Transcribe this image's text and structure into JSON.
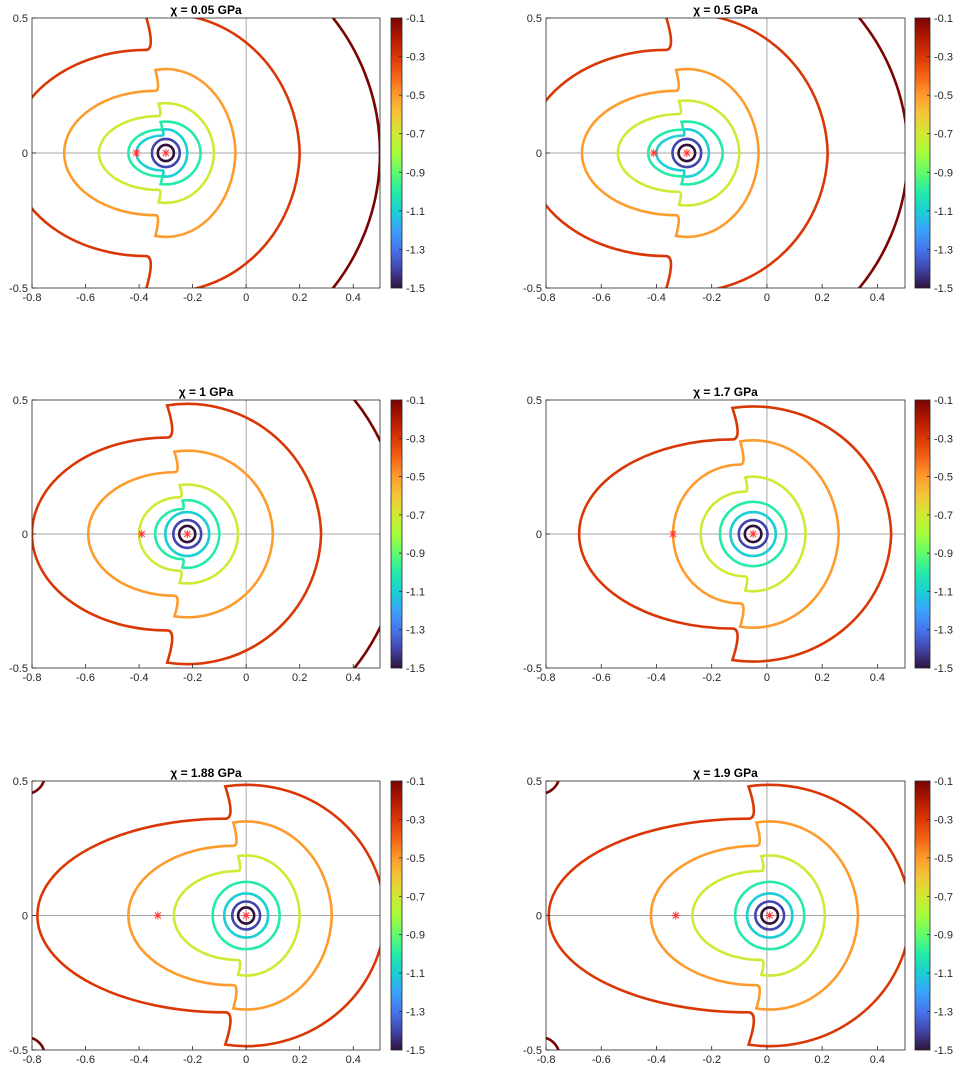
{
  "figure": {
    "x_ticks": [
      "-0.8",
      "-0.6",
      "-0.4",
      "-0.2",
      "0",
      "0.2",
      "0.4"
    ],
    "y_ticks": [
      "-0.5",
      "0",
      "0.5"
    ],
    "colorbar_ticks": [
      "-0.1",
      "-0.3",
      "-0.5",
      "-0.7",
      "-0.9",
      "-1.1",
      "-1.3",
      "-1.5"
    ],
    "colorbar_range": [
      -1.5,
      -0.1
    ],
    "colormap": [
      "#30123b",
      "#4145ab",
      "#4675ed",
      "#39a2fc",
      "#1bcfd4",
      "#24eca6",
      "#61fc6c",
      "#a4fc3b",
      "#d1e834",
      "#f3c63a",
      "#fe9b2d",
      "#f36315",
      "#d93806",
      "#b11901",
      "#7a0402"
    ],
    "axis_line_color": "#a6a6a6",
    "star_color": "#ff3030"
  },
  "chart_data": [
    {
      "type": "contour",
      "title": "χ = 0.05 GPa",
      "xlim": [
        -0.8,
        0.5
      ],
      "ylim": [
        -0.5,
        0.5
      ],
      "center_star": [
        -0.3,
        0
      ],
      "side_star": [
        -0.41,
        0
      ],
      "levels": [
        {
          "value": -1.5,
          "color": "#30123b",
          "shape": "circle",
          "center": [
            -0.3,
            0
          ],
          "radius": 0.03
        },
        {
          "value": -1.3,
          "color": "#4145ab",
          "shape": "circle",
          "center": [
            -0.3,
            0
          ],
          "radius": 0.052
        },
        {
          "value": -1.1,
          "color": "#1bcfd4",
          "shape": "blob",
          "xmin": -0.41,
          "xmax": -0.22,
          "ymax": 0.09
        },
        {
          "value": -0.9,
          "color": "#24eca6",
          "shape": "blob",
          "xmin": -0.44,
          "xmax": -0.17,
          "ymax": 0.12
        },
        {
          "value": -0.7,
          "color": "#d1e834",
          "shape": "blob",
          "xmin": -0.55,
          "xmax": -0.12,
          "ymax": 0.19
        },
        {
          "value": -0.5,
          "color": "#fe9b2d",
          "shape": "blob",
          "xmin": -0.68,
          "xmax": -0.04,
          "ymax": 0.32
        },
        {
          "value": -0.3,
          "color": "#d93806",
          "shape": "blob",
          "xmin": -0.88,
          "xmax": 0.2,
          "ymax": 0.53
        },
        {
          "value": -0.1,
          "color": "#7a0402",
          "shape": "arc",
          "center": [
            -0.3,
            0
          ],
          "radius": 0.8
        }
      ]
    },
    {
      "type": "contour",
      "title": "χ = 0.5 GPa",
      "xlim": [
        -0.8,
        0.5
      ],
      "ylim": [
        -0.5,
        0.5
      ],
      "center_star": [
        -0.29,
        0
      ],
      "side_star": [
        -0.41,
        0
      ],
      "levels": [
        {
          "value": -1.5,
          "color": "#30123b",
          "shape": "circle",
          "center": [
            -0.29,
            0
          ],
          "radius": 0.03
        },
        {
          "value": -1.3,
          "color": "#4145ab",
          "shape": "circle",
          "center": [
            -0.29,
            0
          ],
          "radius": 0.052
        },
        {
          "value": -1.1,
          "color": "#1bcfd4",
          "shape": "blob",
          "xmin": -0.4,
          "xmax": -0.21,
          "ymax": 0.09
        },
        {
          "value": -0.9,
          "color": "#24eca6",
          "shape": "blob",
          "xmin": -0.43,
          "xmax": -0.16,
          "ymax": 0.12
        },
        {
          "value": -0.7,
          "color": "#d1e834",
          "shape": "blob",
          "xmin": -0.54,
          "xmax": -0.1,
          "ymax": 0.2
        },
        {
          "value": -0.5,
          "color": "#fe9b2d",
          "shape": "blob",
          "xmin": -0.67,
          "xmax": -0.03,
          "ymax": 0.32
        },
        {
          "value": -0.3,
          "color": "#d93806",
          "shape": "blob",
          "xmin": -0.87,
          "xmax": 0.22,
          "ymax": 0.53
        },
        {
          "value": -0.1,
          "color": "#7a0402",
          "shape": "arc",
          "center": [
            -0.29,
            0
          ],
          "radius": 0.8
        }
      ]
    },
    {
      "type": "contour",
      "title": "χ = 1 GPa",
      "xlim": [
        -0.8,
        0.5
      ],
      "ylim": [
        -0.5,
        0.5
      ],
      "center_star": [
        -0.22,
        0
      ],
      "side_star": [
        -0.39,
        0
      ],
      "levels": [
        {
          "value": -1.5,
          "color": "#30123b",
          "shape": "circle",
          "center": [
            -0.22,
            0
          ],
          "radius": 0.03
        },
        {
          "value": -1.3,
          "color": "#4145ab",
          "shape": "circle",
          "center": [
            -0.22,
            0
          ],
          "radius": 0.052
        },
        {
          "value": -1.1,
          "color": "#1bcfd4",
          "shape": "circle",
          "center": [
            -0.22,
            0
          ],
          "radius": 0.082
        },
        {
          "value": -0.9,
          "color": "#24eca6",
          "shape": "blob",
          "xmin": -0.34,
          "xmax": -0.1,
          "ymax": 0.13
        },
        {
          "value": -0.7,
          "color": "#d1e834",
          "shape": "blob",
          "xmin": -0.4,
          "xmax": -0.03,
          "ymax": 0.19
        },
        {
          "value": -0.5,
          "color": "#fe9b2d",
          "shape": "blob",
          "xmin": -0.59,
          "xmax": 0.1,
          "ymax": 0.32
        },
        {
          "value": -0.3,
          "color": "#d93806",
          "shape": "blob",
          "xmin": -0.8,
          "xmax": 0.28,
          "ymax": 0.5
        },
        {
          "value": -0.1,
          "color": "#7a0402",
          "shape": "arc",
          "center": [
            -0.22,
            0
          ],
          "radius": 0.8
        }
      ]
    },
    {
      "type": "contour",
      "title": "χ = 1.7 GPa",
      "xlim": [
        -0.8,
        0.5
      ],
      "ylim": [
        -0.5,
        0.5
      ],
      "center_star": [
        -0.05,
        0
      ],
      "side_star": [
        -0.34,
        0
      ],
      "levels": [
        {
          "value": -1.5,
          "color": "#30123b",
          "shape": "circle",
          "center": [
            -0.05,
            0
          ],
          "radius": 0.03
        },
        {
          "value": -1.3,
          "color": "#4145ab",
          "shape": "circle",
          "center": [
            -0.05,
            0
          ],
          "radius": 0.052
        },
        {
          "value": -1.1,
          "color": "#1bcfd4",
          "shape": "circle",
          "center": [
            -0.05,
            0
          ],
          "radius": 0.082
        },
        {
          "value": -0.9,
          "color": "#24eca6",
          "shape": "circle",
          "center": [
            -0.05,
            0
          ],
          "radius": 0.12
        },
        {
          "value": -0.7,
          "color": "#d1e834",
          "shape": "blob",
          "xmin": -0.24,
          "xmax": 0.14,
          "ymax": 0.22
        },
        {
          "value": -0.5,
          "color": "#fe9b2d",
          "shape": "blob",
          "xmin": -0.34,
          "xmax": 0.26,
          "ymax": 0.36
        },
        {
          "value": -0.3,
          "color": "#d93806",
          "shape": "blob",
          "xmin": -0.68,
          "xmax": 0.45,
          "ymax": 0.49
        },
        {
          "value": -0.1,
          "color": "#7a0402",
          "shape": "none"
        }
      ]
    },
    {
      "type": "contour",
      "title": "χ = 1.88 GPa",
      "xlim": [
        -0.8,
        0.5
      ],
      "ylim": [
        -0.5,
        0.5
      ],
      "center_star": [
        0,
        0
      ],
      "side_star": [
        -0.33,
        0
      ],
      "levels": [
        {
          "value": -1.5,
          "color": "#30123b",
          "shape": "circle",
          "center": [
            0,
            0
          ],
          "radius": 0.03
        },
        {
          "value": -1.3,
          "color": "#4145ab",
          "shape": "circle",
          "center": [
            0,
            0
          ],
          "radius": 0.052
        },
        {
          "value": -1.1,
          "color": "#1bcfd4",
          "shape": "circle",
          "center": [
            0,
            0
          ],
          "radius": 0.082
        },
        {
          "value": -0.9,
          "color": "#24eca6",
          "shape": "circle",
          "center": [
            0,
            0
          ],
          "radius": 0.125
        },
        {
          "value": -0.7,
          "color": "#d1e834",
          "shape": "blob",
          "xmin": -0.27,
          "xmax": 0.2,
          "ymax": 0.23
        },
        {
          "value": -0.5,
          "color": "#fe9b2d",
          "shape": "blob",
          "xmin": -0.44,
          "xmax": 0.32,
          "ymax": 0.36
        },
        {
          "value": -0.3,
          "color": "#d93806",
          "shape": "blob",
          "xmin": -0.78,
          "xmax": 0.52,
          "ymax": 0.5
        },
        {
          "value": -0.1,
          "color": "#7a0402",
          "shape": "corners"
        }
      ]
    },
    {
      "type": "contour",
      "title": "χ = 1.9 GPa",
      "xlim": [
        -0.8,
        0.5
      ],
      "ylim": [
        -0.5,
        0.5
      ],
      "center_star": [
        0.01,
        0
      ],
      "side_star": [
        -0.33,
        0
      ],
      "levels": [
        {
          "value": -1.5,
          "color": "#30123b",
          "shape": "circle",
          "center": [
            0.01,
            0
          ],
          "radius": 0.03
        },
        {
          "value": -1.3,
          "color": "#4145ab",
          "shape": "circle",
          "center": [
            0.01,
            0
          ],
          "radius": 0.052
        },
        {
          "value": -1.1,
          "color": "#1bcfd4",
          "shape": "circle",
          "center": [
            0.01,
            0
          ],
          "radius": 0.082
        },
        {
          "value": -0.9,
          "color": "#24eca6",
          "shape": "circle",
          "center": [
            0.01,
            0
          ],
          "radius": 0.125
        },
        {
          "value": -0.7,
          "color": "#d1e834",
          "shape": "blob",
          "xmin": -0.27,
          "xmax": 0.21,
          "ymax": 0.23
        },
        {
          "value": -0.5,
          "color": "#fe9b2d",
          "shape": "blob",
          "xmin": -0.42,
          "xmax": 0.33,
          "ymax": 0.36
        },
        {
          "value": -0.3,
          "color": "#d93806",
          "shape": "blob",
          "xmin": -0.79,
          "xmax": 0.52,
          "ymax": 0.5
        },
        {
          "value": -0.1,
          "color": "#7a0402",
          "shape": "corners"
        }
      ]
    }
  ]
}
